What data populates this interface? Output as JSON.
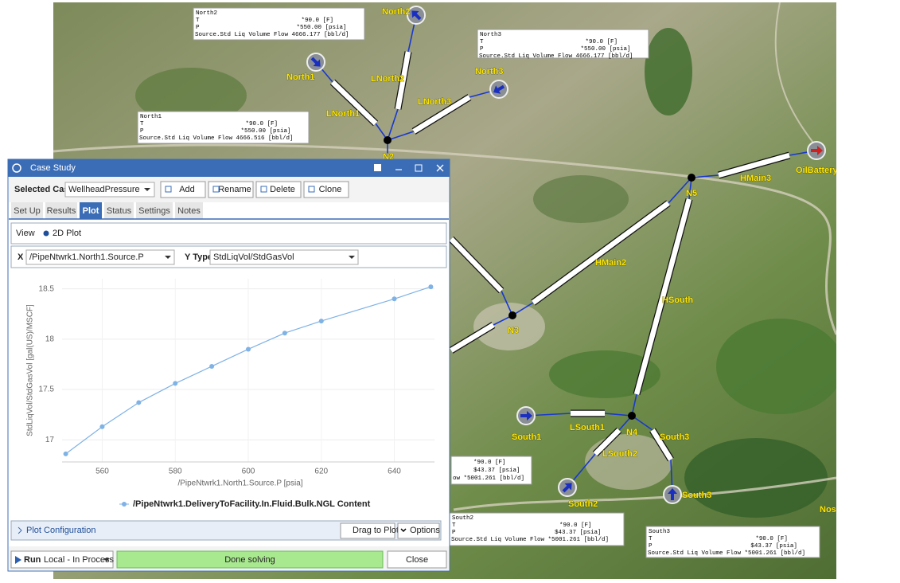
{
  "map": {
    "labels": [
      "North2",
      "North1",
      "LNorth2",
      "LNorth1",
      "LNorth3",
      "North3",
      "N2",
      "N5",
      "HMain3",
      "OilBattery",
      "HMain2",
      "HSouth",
      "N3",
      "N4",
      "LSouth1",
      "LSouth2",
      "South1",
      "South2",
      "South3",
      "South3",
      "Nos"
    ],
    "info_boxes": [
      {
        "title": "North2",
        "t_label": "T",
        "t": "*90.0 [F]",
        "p_label": "P",
        "p": "*550.00 [psia]",
        "flow": "Source.Std Liq Volume Flow 4666.177 [bbl/d]"
      },
      {
        "title": "North3",
        "t_label": "T",
        "t": "*90.0 [F]",
        "p_label": "P",
        "p": "*550.00 [psia]",
        "flow": "Source.Std Liq Volume Flow 4666.177 [bbl/d]"
      },
      {
        "title": "North1",
        "t_label": "T",
        "t": "*90.0 [F]",
        "p_label": "P",
        "p": "*550.00 [psia]",
        "flow": "Source.Std Liq Volume Flow 4666.516 [bbl/d]"
      },
      {
        "t": "*90.0 [F]",
        "p": "$43.37 [psia]",
        "flow": "ow *5001.261 [bbl/d]"
      },
      {
        "title": "South2",
        "t_label": "T",
        "t": "*90.0 [F]",
        "p_label": "P",
        "p": "$43.37 [psia]",
        "flow": "Source.Std Liq Volume Flow *5001.261 [bbl/d]"
      },
      {
        "title": "South3",
        "t_label": "T",
        "t": "*90.0 [F]",
        "p_label": "P",
        "p": "$43.37 [psia]",
        "flow": "Source.Std Liq Volume Flow *5001.261 [bbl/d]"
      }
    ]
  },
  "dialog": {
    "title": "Case Study",
    "selected_case_label": "Selected Case:",
    "selected_case": "WellheadPressure",
    "buttons": [
      "Add",
      "Rename",
      "Delete",
      "Clone"
    ],
    "tabs": [
      "Set Up",
      "Results",
      "Plot",
      "Status",
      "Settings",
      "Notes"
    ],
    "view_label": "View",
    "view_option": "2D Plot",
    "x_label": "X",
    "x_value": "/PipeNtwrk1.North1.Source.P",
    "y_type_label": "Y Type",
    "y_type_value": "StdLiqVol/StdGasVol",
    "plot_config": "Plot Configuration",
    "drag_to_plot": "Drag to Plot",
    "options": "Options",
    "run": "Run",
    "run_mode": "Local - In Process",
    "status": "Done solving",
    "close": "Close"
  },
  "chart_data": {
    "type": "line",
    "xlabel": "/PipeNtwrk1.North1.Source.P [psia]",
    "ylabel": "StdLiqVol/StdGasVol [gal(US)/MSCF]",
    "x": [
      550,
      560,
      570,
      580,
      590,
      600,
      610,
      620,
      640,
      650
    ],
    "series": [
      {
        "name": "/PipeNtwrk1.DeliveryToFacility.In.Fluid.Bulk.NGL Content",
        "color": "#7fb2e5",
        "values": [
          16.86,
          17.13,
          17.37,
          17.56,
          17.73,
          17.9,
          18.06,
          18.18,
          18.4,
          18.52
        ]
      }
    ],
    "xlim": [
      549,
      651
    ],
    "ylim": [
      16.78,
      18.6
    ],
    "xticks": [
      560,
      580,
      600,
      620,
      640
    ],
    "yticks": [
      17,
      17.5,
      18,
      18.5
    ],
    "grid": true
  }
}
